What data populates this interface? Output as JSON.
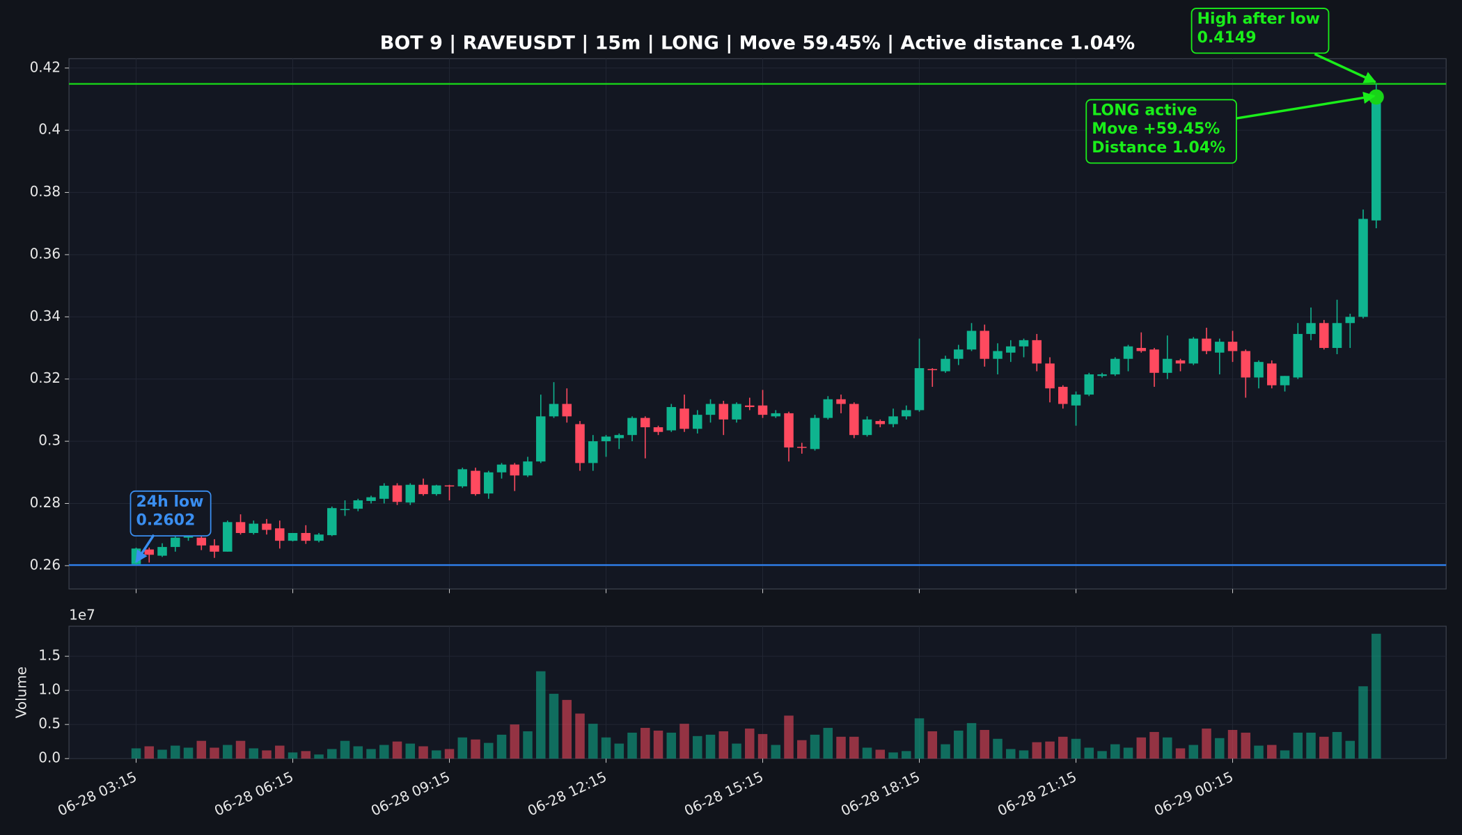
{
  "chart_data": {
    "type": "candlestick",
    "title": "BOT 9 | RAVEUSDT | 15m | LONG | Move 59.45% | Active distance 1.04%",
    "x": [
      "06-28 03:15",
      "06-28 03:30",
      "06-28 03:45",
      "06-28 04:00",
      "06-28 04:15",
      "06-28 04:30",
      "06-28 04:45",
      "06-28 05:00",
      "06-28 05:15",
      "06-28 05:30",
      "06-28 05:45",
      "06-28 06:00",
      "06-28 06:15",
      "06-28 06:30",
      "06-28 06:45",
      "06-28 07:00",
      "06-28 07:15",
      "06-28 07:30",
      "06-28 07:45",
      "06-28 08:00",
      "06-28 08:15",
      "06-28 08:30",
      "06-28 08:45",
      "06-28 09:00",
      "06-28 09:15",
      "06-28 09:30",
      "06-28 09:45",
      "06-28 10:00",
      "06-28 10:15",
      "06-28 10:30",
      "06-28 10:45",
      "06-28 11:00",
      "06-28 11:15",
      "06-28 11:30",
      "06-28 11:45",
      "06-28 12:00",
      "06-28 12:15",
      "06-28 12:30",
      "06-28 12:45",
      "06-28 13:00",
      "06-28 13:15",
      "06-28 13:30",
      "06-28 13:45",
      "06-28 14:00",
      "06-28 14:15",
      "06-28 14:30",
      "06-28 14:45",
      "06-28 15:00",
      "06-28 15:15",
      "06-28 15:30",
      "06-28 15:45",
      "06-28 16:00",
      "06-28 16:15",
      "06-28 16:30",
      "06-28 16:45",
      "06-28 17:00",
      "06-28 17:15",
      "06-28 17:30",
      "06-28 17:45",
      "06-28 18:00",
      "06-28 18:15",
      "06-28 18:30",
      "06-28 18:45",
      "06-28 19:00",
      "06-28 19:15",
      "06-28 19:30",
      "06-28 19:45",
      "06-28 20:00",
      "06-28 20:15",
      "06-28 20:30",
      "06-28 20:45",
      "06-28 21:00",
      "06-28 21:15",
      "06-28 21:30",
      "06-28 21:45",
      "06-28 22:00",
      "06-28 22:15",
      "06-28 22:30",
      "06-28 22:45",
      "06-28 23:00",
      "06-28 23:15",
      "06-28 23:30",
      "06-28 23:45",
      "06-29 00:00",
      "06-29 00:15",
      "06-29 00:30",
      "06-29 00:45",
      "06-29 01:00",
      "06-29 01:15",
      "06-29 01:30",
      "06-29 01:45",
      "06-29 02:00",
      "06-29 02:15",
      "06-29 02:30",
      "06-29 02:45",
      "06-29 03:00"
    ],
    "xticks": [
      "06-28 03:15",
      "06-28 06:15",
      "06-28 09:15",
      "06-28 12:15",
      "06-28 15:15",
      "06-28 18:15",
      "06-28 21:15",
      "06-29 00:15"
    ],
    "open": [
      0.2605,
      0.2652,
      0.2632,
      0.266,
      0.269,
      0.269,
      0.2665,
      0.2645,
      0.274,
      0.2705,
      0.2735,
      0.272,
      0.268,
      0.2705,
      0.268,
      0.2698,
      0.278,
      0.2783,
      0.2808,
      0.2815,
      0.2858,
      0.2803,
      0.286,
      0.283,
      0.2858,
      0.2855,
      0.2905,
      0.2832,
      0.29,
      0.2925,
      0.289,
      0.2935,
      0.308,
      0.312,
      0.3055,
      0.293,
      0.3,
      0.301,
      0.302,
      0.3075,
      0.3045,
      0.3035,
      0.3105,
      0.304,
      0.3085,
      0.312,
      0.307,
      0.3115,
      0.3115,
      0.308,
      0.309,
      0.2982,
      0.2975,
      0.3075,
      0.3135,
      0.312,
      0.302,
      0.3065,
      0.3055,
      0.308,
      0.31,
      0.3232,
      0.3225,
      0.3265,
      0.3295,
      0.3355,
      0.3265,
      0.3285,
      0.3305,
      0.3325,
      0.325,
      0.3175,
      0.3115,
      0.315,
      0.321,
      0.3215,
      0.3265,
      0.33,
      0.3295,
      0.322,
      0.326,
      0.325,
      0.333,
      0.3285,
      0.332,
      0.329,
      0.3205,
      0.325,
      0.318,
      0.3205,
      0.3345,
      0.338,
      0.33,
      0.338,
      0.34,
      0.371
    ],
    "high": [
      0.2658,
      0.2658,
      0.2672,
      0.27,
      0.2705,
      0.27,
      0.2685,
      0.2745,
      0.2765,
      0.2745,
      0.275,
      0.2745,
      0.2705,
      0.273,
      0.2705,
      0.279,
      0.281,
      0.2815,
      0.2825,
      0.2865,
      0.2865,
      0.2865,
      0.288,
      0.286,
      0.286,
      0.2915,
      0.2915,
      0.2905,
      0.293,
      0.293,
      0.295,
      0.315,
      0.319,
      0.317,
      0.3065,
      0.302,
      0.302,
      0.3025,
      0.308,
      0.308,
      0.305,
      0.312,
      0.315,
      0.31,
      0.3135,
      0.313,
      0.3125,
      0.314,
      0.3165,
      0.31,
      0.3095,
      0.2995,
      0.3085,
      0.3145,
      0.315,
      0.3125,
      0.308,
      0.307,
      0.3105,
      0.3115,
      0.333,
      0.3235,
      0.3275,
      0.331,
      0.338,
      0.3375,
      0.3315,
      0.3325,
      0.333,
      0.3345,
      0.327,
      0.318,
      0.316,
      0.322,
      0.322,
      0.327,
      0.331,
      0.335,
      0.33,
      0.334,
      0.3265,
      0.3335,
      0.3365,
      0.333,
      0.3355,
      0.3295,
      0.326,
      0.326,
      0.321,
      0.338,
      0.343,
      0.339,
      0.3455,
      0.341,
      0.3745,
      0.4149
    ],
    "low": [
      0.2602,
      0.261,
      0.2628,
      0.2645,
      0.268,
      0.265,
      0.2625,
      0.2645,
      0.27,
      0.27,
      0.27,
      0.2655,
      0.2678,
      0.267,
      0.2675,
      0.2695,
      0.276,
      0.2775,
      0.28,
      0.28,
      0.2795,
      0.2795,
      0.2825,
      0.2825,
      0.281,
      0.285,
      0.2825,
      0.2815,
      0.288,
      0.284,
      0.2885,
      0.293,
      0.3075,
      0.306,
      0.2905,
      0.2905,
      0.295,
      0.2975,
      0.3,
      0.2945,
      0.302,
      0.303,
      0.303,
      0.3025,
      0.306,
      0.302,
      0.306,
      0.31,
      0.3075,
      0.3075,
      0.2935,
      0.296,
      0.297,
      0.307,
      0.309,
      0.301,
      0.3015,
      0.3045,
      0.3045,
      0.307,
      0.3095,
      0.3175,
      0.322,
      0.3245,
      0.329,
      0.324,
      0.3215,
      0.3255,
      0.327,
      0.3225,
      0.3125,
      0.3105,
      0.305,
      0.3145,
      0.3205,
      0.321,
      0.3225,
      0.3285,
      0.3175,
      0.32,
      0.3225,
      0.3245,
      0.328,
      0.3215,
      0.3255,
      0.314,
      0.317,
      0.317,
      0.316,
      0.32,
      0.3325,
      0.3295,
      0.328,
      0.33,
      0.3395,
      0.3685
    ],
    "close": [
      0.2655,
      0.2635,
      0.266,
      0.269,
      0.2695,
      0.2665,
      0.2645,
      0.274,
      0.2705,
      0.2735,
      0.2715,
      0.268,
      0.2705,
      0.268,
      0.27,
      0.2785,
      0.2782,
      0.281,
      0.282,
      0.2857,
      0.2805,
      0.286,
      0.283,
      0.2858,
      0.2855,
      0.291,
      0.283,
      0.29,
      0.2925,
      0.289,
      0.2935,
      0.308,
      0.312,
      0.308,
      0.293,
      0.3,
      0.3015,
      0.302,
      0.3075,
      0.3045,
      0.303,
      0.311,
      0.304,
      0.3085,
      0.312,
      0.307,
      0.312,
      0.311,
      0.3085,
      0.309,
      0.298,
      0.298,
      0.3075,
      0.3135,
      0.312,
      0.302,
      0.307,
      0.3055,
      0.308,
      0.31,
      0.3235,
      0.323,
      0.3265,
      0.3295,
      0.3355,
      0.3265,
      0.329,
      0.3305,
      0.3325,
      0.325,
      0.317,
      0.312,
      0.315,
      0.3215,
      0.3215,
      0.3265,
      0.3305,
      0.329,
      0.322,
      0.3265,
      0.325,
      0.333,
      0.329,
      0.332,
      0.329,
      0.3205,
      0.3255,
      0.318,
      0.321,
      0.3345,
      0.338,
      0.33,
      0.338,
      0.34,
      0.3715,
      0.4107
    ],
    "volume": [
      0.15,
      0.18,
      0.13,
      0.19,
      0.16,
      0.26,
      0.16,
      0.2,
      0.26,
      0.15,
      0.12,
      0.19,
      0.09,
      0.11,
      0.06,
      0.14,
      0.26,
      0.18,
      0.14,
      0.2,
      0.25,
      0.22,
      0.18,
      0.12,
      0.14,
      0.31,
      0.28,
      0.23,
      0.35,
      0.5,
      0.4,
      1.28,
      0.95,
      0.86,
      0.66,
      0.51,
      0.31,
      0.22,
      0.38,
      0.45,
      0.41,
      0.38,
      0.51,
      0.33,
      0.35,
      0.4,
      0.22,
      0.44,
      0.36,
      0.2,
      0.63,
      0.27,
      0.35,
      0.45,
      0.32,
      0.32,
      0.16,
      0.13,
      0.09,
      0.11,
      0.59,
      0.4,
      0.21,
      0.41,
      0.52,
      0.42,
      0.29,
      0.14,
      0.12,
      0.24,
      0.25,
      0.32,
      0.29,
      0.16,
      0.11,
      0.21,
      0.16,
      0.31,
      0.39,
      0.31,
      0.15,
      0.2,
      0.44,
      0.3,
      0.42,
      0.38,
      0.19,
      0.2,
      0.12,
      0.38,
      0.38,
      0.32,
      0.39,
      0.26,
      1.06,
      1.83
    ],
    "up_color": "#0fb48f",
    "down_color": "#ff4a5f",
    "ylim": [
      0.2525,
      0.423
    ],
    "yticks": [
      0.26,
      0.28,
      0.3,
      0.32,
      0.34,
      0.36,
      0.38,
      0.4,
      0.42
    ],
    "volume_ylim": [
      0,
      1.94
    ],
    "volume_yticks": [
      {
        "value": 0,
        "label": "0.0"
      },
      0.5,
      {
        "value": 1,
        "label": "1.0"
      },
      1.5
    ],
    "volume_label": "Volume",
    "volume_offset": "1e7",
    "grid": true,
    "low_line": {
      "value": 0.2602,
      "color": "#2f80ed"
    },
    "high_line": {
      "value": 0.4149,
      "color": "#18d418"
    },
    "annotations": [
      {
        "lines": [
          "24h low",
          "0.2602"
        ],
        "color": "#3a8ef0"
      },
      {
        "lines": [
          "High after low",
          "0.4149"
        ],
        "color": "#1aee1a"
      },
      {
        "lines": [
          "LONG active",
          "Move +59.45%",
          "Distance 1.04%"
        ],
        "color": "#1aee1a"
      }
    ]
  }
}
